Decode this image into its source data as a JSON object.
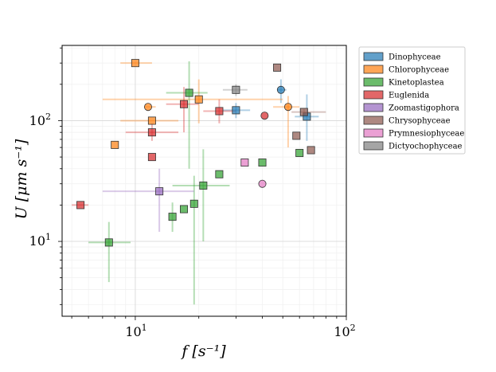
{
  "chart_data": {
    "type": "scatter",
    "x_scale": "log",
    "y_scale": "log",
    "xlim": [
      4.5,
      100
    ],
    "ylim": [
      2.4,
      420
    ],
    "xlabel": "f [s⁻¹]",
    "ylabel": "U [μm s⁻¹]",
    "x_tick_labels": [
      {
        "value": 10,
        "base": "10",
        "exp": "1"
      },
      {
        "value": 100,
        "base": "10",
        "exp": "2"
      }
    ],
    "y_tick_labels": [
      {
        "value": 10,
        "base": "10",
        "exp": "1"
      },
      {
        "value": 100,
        "base": "10",
        "exp": "2"
      }
    ],
    "legend_position": "outside-right",
    "series": [
      {
        "name": "Dinophyceae",
        "color": "#1f77b4",
        "points": [
          {
            "x": 30,
            "y": 122,
            "marker": "square",
            "xerr": [
              26,
              35
            ],
            "yerr": [
              105,
              140
            ]
          },
          {
            "x": 65,
            "y": 108,
            "marker": "square",
            "xerr": [
              57,
              74
            ],
            "yerr": [
              68,
              165
            ]
          },
          {
            "x": 49,
            "y": 180,
            "marker": "circle",
            "xerr": [
              47,
              52
            ],
            "yerr": [
              140,
              220
            ]
          }
        ]
      },
      {
        "name": "Chlorophyceae",
        "color": "#ff7f0e",
        "points": [
          {
            "x": 10,
            "y": 300,
            "marker": "square",
            "xerr": [
              8.5,
              12
            ],
            "yerr": [
              300,
              300
            ]
          },
          {
            "x": 11.5,
            "y": 130,
            "marker": "circle",
            "xerr": [
              11,
              12.5
            ],
            "yerr": [
              130,
              130
            ]
          },
          {
            "x": 12,
            "y": 100,
            "marker": "square",
            "xerr": [
              8.5,
              16
            ],
            "yerr": [
              100,
              100
            ]
          },
          {
            "x": 20,
            "y": 150,
            "marker": "square",
            "xerr": [
              7,
              50
            ],
            "yerr": [
              95,
              220
            ]
          },
          {
            "x": 8,
            "y": 63,
            "marker": "square",
            "xerr": [
              8,
              8
            ],
            "yerr": [
              63,
              63
            ]
          },
          {
            "x": 53,
            "y": 130,
            "marker": "circle",
            "xerr": [
              45,
              60
            ],
            "yerr": [
              60,
              160
            ]
          }
        ]
      },
      {
        "name": "Kinetoplastea",
        "color": "#2ca02c",
        "points": [
          {
            "x": 18,
            "y": 170,
            "marker": "square",
            "xerr": [
              14,
              22
            ],
            "yerr": [
              40,
              310
            ]
          },
          {
            "x": 7.5,
            "y": 9.8,
            "marker": "square",
            "xerr": [
              6,
              9.5
            ],
            "yerr": [
              4.6,
              14.5
            ]
          },
          {
            "x": 15,
            "y": 16,
            "marker": "square",
            "xerr": [
              15,
              15
            ],
            "yerr": [
              12,
              21
            ]
          },
          {
            "x": 17,
            "y": 18.5,
            "marker": "square",
            "xerr": [
              17,
              17
            ],
            "yerr": [
              18.5,
              18.5
            ]
          },
          {
            "x": 19,
            "y": 20.5,
            "marker": "square",
            "xerr": [
              19,
              19
            ],
            "yerr": [
              3,
              35
            ]
          },
          {
            "x": 21,
            "y": 29,
            "marker": "square",
            "xerr": [
              15,
              28
            ],
            "yerr": [
              10,
              58
            ]
          },
          {
            "x": 25,
            "y": 36,
            "marker": "square",
            "xerr": [
              25,
              25
            ],
            "yerr": [
              36,
              36
            ]
          },
          {
            "x": 40,
            "y": 45,
            "marker": "square",
            "xerr": [
              40,
              40
            ],
            "yerr": [
              45,
              45
            ]
          },
          {
            "x": 60,
            "y": 54,
            "marker": "square",
            "xerr": [
              60,
              60
            ],
            "yerr": [
              54,
              54
            ]
          }
        ]
      },
      {
        "name": "Euglenida",
        "color": "#d62728",
        "points": [
          {
            "x": 17,
            "y": 137,
            "marker": "square",
            "xerr": [
              14,
              20
            ],
            "yerr": [
              80,
              190
            ]
          },
          {
            "x": 12,
            "y": 80,
            "marker": "square",
            "xerr": [
              9,
              16
            ],
            "yerr": [
              68,
              95
            ]
          },
          {
            "x": 12,
            "y": 50,
            "marker": "square",
            "xerr": [
              12,
              12
            ],
            "yerr": [
              50,
              50
            ]
          },
          {
            "x": 5.5,
            "y": 20,
            "marker": "square",
            "xerr": [
              5,
              6
            ],
            "yerr": [
              20,
              20
            ]
          },
          {
            "x": 25,
            "y": 120,
            "marker": "square",
            "xerr": [
              21,
              30
            ],
            "yerr": [
              95,
              150
            ]
          },
          {
            "x": 41,
            "y": 110,
            "marker": "circle",
            "xerr": [
              41,
              41
            ],
            "yerr": [
              110,
              110
            ]
          }
        ]
      },
      {
        "name": "Zoomastigophora",
        "color": "#9467bd",
        "points": [
          {
            "x": 13,
            "y": 26,
            "marker": "square",
            "xerr": [
              7,
              19
            ],
            "yerr": [
              12,
              40
            ]
          }
        ]
      },
      {
        "name": "Chrysophyceae",
        "color": "#8c564b",
        "points": [
          {
            "x": 47,
            "y": 275,
            "marker": "square",
            "xerr": [
              47,
              47
            ],
            "yerr": [
              275,
              275
            ]
          },
          {
            "x": 63,
            "y": 118,
            "marker": "square",
            "xerr": [
              55,
              80
            ],
            "yerr": [
              110,
              125
            ]
          },
          {
            "x": 58,
            "y": 75,
            "marker": "square",
            "xerr": [
              58,
              58
            ],
            "yerr": [
              75,
              75
            ]
          },
          {
            "x": 68,
            "y": 57,
            "marker": "square",
            "xerr": [
              68,
              68
            ],
            "yerr": [
              57,
              57
            ]
          }
        ]
      },
      {
        "name": "Prymnesiophyceae",
        "color": "#e377c2",
        "points": [
          {
            "x": 33,
            "y": 45,
            "marker": "square",
            "xerr": [
              33,
              33
            ],
            "yerr": [
              45,
              45
            ]
          },
          {
            "x": 40,
            "y": 30,
            "marker": "circle",
            "xerr": [
              40,
              40
            ],
            "yerr": [
              30,
              30
            ]
          }
        ]
      },
      {
        "name": "Dictyochophyceae",
        "color": "#7f7f7f",
        "points": [
          {
            "x": 30,
            "y": 180,
            "marker": "square",
            "xerr": [
              26,
              34
            ],
            "yerr": [
              160,
              200
            ]
          }
        ]
      }
    ]
  }
}
